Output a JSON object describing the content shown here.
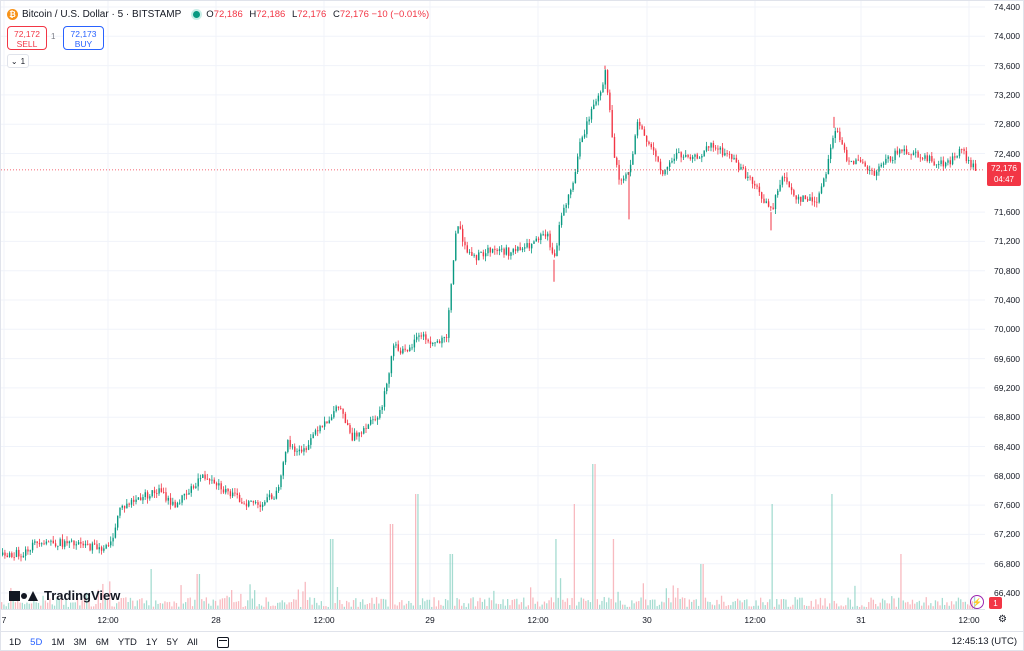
{
  "legend": {
    "symbol": "Bitcoin / U.S. Dollar · 5 · BITSTAMP",
    "open_label": "O",
    "open": "72,186",
    "high_label": "H",
    "high": "72,186",
    "low_label": "L",
    "low": "72,176",
    "close_label": "C",
    "close": "72,176",
    "change": "−10 (−0.01%)"
  },
  "trade": {
    "sell_price": "72,172",
    "sell_label": "SELL",
    "spread": "1",
    "buy_price": "72,173",
    "buy_label": "BUY"
  },
  "collapse_count": "1",
  "price_axis": {
    "ticks": [
      "74,400",
      "74,000",
      "73,600",
      "73,200",
      "72,800",
      "72,400",
      "71,600",
      "71,200",
      "70,800",
      "70,400",
      "70,000",
      "69,600",
      "69,200",
      "68,800",
      "68,400",
      "68,000",
      "67,600",
      "67,200",
      "66,800",
      "66,400"
    ],
    "current_price": "72,176",
    "countdown": "04:47"
  },
  "time_axis": {
    "ticks": [
      "7",
      "12:00",
      "28",
      "12:00",
      "29",
      "12:00",
      "30",
      "12:00",
      "31",
      "12:00"
    ]
  },
  "watermark": "TradingView",
  "alerts_badge": "1",
  "toolbar": {
    "ranges": [
      "1D",
      "5D",
      "1M",
      "3M",
      "6M",
      "YTD",
      "1Y",
      "5Y",
      "All"
    ],
    "active_range": "5D",
    "clock": "12:45:13 (UTC)"
  },
  "colors": {
    "up": "#089981",
    "down": "#f23645",
    "accent": "#2962ff"
  },
  "chart_data": {
    "type": "candlestick",
    "title": "Bitcoin / U.S. Dollar · 5 · BITSTAMP",
    "interval_minutes": 5,
    "ylim": [
      66400,
      74400
    ],
    "grid": true,
    "current_price": 72176,
    "price_path": [
      [
        0,
        66920
      ],
      [
        20,
        66940
      ],
      [
        38,
        67120
      ],
      [
        60,
        67080
      ],
      [
        85,
        67040
      ],
      [
        108,
        67020
      ],
      [
        118,
        67550
      ],
      [
        140,
        67720
      ],
      [
        158,
        67790
      ],
      [
        172,
        67600
      ],
      [
        186,
        67740
      ],
      [
        198,
        67980
      ],
      [
        210,
        67980
      ],
      [
        225,
        67780
      ],
      [
        242,
        67640
      ],
      [
        260,
        67620
      ],
      [
        275,
        67760
      ],
      [
        285,
        68450
      ],
      [
        300,
        68300
      ],
      [
        315,
        68650
      ],
      [
        328,
        68800
      ],
      [
        338,
        68950
      ],
      [
        350,
        68500
      ],
      [
        365,
        68700
      ],
      [
        380,
        68900
      ],
      [
        392,
        69800
      ],
      [
        405,
        69650
      ],
      [
        418,
        69950
      ],
      [
        430,
        69800
      ],
      [
        445,
        69850
      ],
      [
        450,
        70700
      ],
      [
        455,
        71450
      ],
      [
        470,
        70950
      ],
      [
        490,
        71100
      ],
      [
        510,
        71050
      ],
      [
        530,
        71150
      ],
      [
        545,
        71300
      ],
      [
        553,
        70950
      ],
      [
        560,
        71600
      ],
      [
        570,
        71900
      ],
      [
        578,
        72500
      ],
      [
        590,
        73000
      ],
      [
        600,
        73300
      ],
      [
        604,
        73550
      ],
      [
        612,
        72400
      ],
      [
        618,
        72000
      ],
      [
        628,
        72150
      ],
      [
        636,
        72800
      ],
      [
        650,
        72500
      ],
      [
        660,
        72100
      ],
      [
        675,
        72400
      ],
      [
        690,
        72300
      ],
      [
        710,
        72500
      ],
      [
        730,
        72350
      ],
      [
        745,
        72100
      ],
      [
        758,
        71850
      ],
      [
        770,
        71600
      ],
      [
        780,
        72100
      ],
      [
        795,
        71800
      ],
      [
        815,
        71750
      ],
      [
        825,
        72200
      ],
      [
        833,
        72750
      ],
      [
        845,
        72350
      ],
      [
        860,
        72250
      ],
      [
        872,
        72100
      ],
      [
        885,
        72300
      ],
      [
        900,
        72450
      ],
      [
        915,
        72400
      ],
      [
        930,
        72300
      ],
      [
        945,
        72250
      ],
      [
        960,
        72450
      ],
      [
        968,
        72250
      ],
      [
        975,
        72176
      ]
    ],
    "volume_spikes": [
      [
        150,
        40
      ],
      [
        197,
        35
      ],
      [
        330,
        70
      ],
      [
        390,
        85
      ],
      [
        415,
        115
      ],
      [
        450,
        55
      ],
      [
        555,
        70
      ],
      [
        572,
        105
      ],
      [
        592,
        145
      ],
      [
        612,
        70
      ],
      [
        700,
        45
      ],
      [
        770,
        105
      ],
      [
        830,
        115
      ],
      [
        900,
        55
      ]
    ]
  }
}
